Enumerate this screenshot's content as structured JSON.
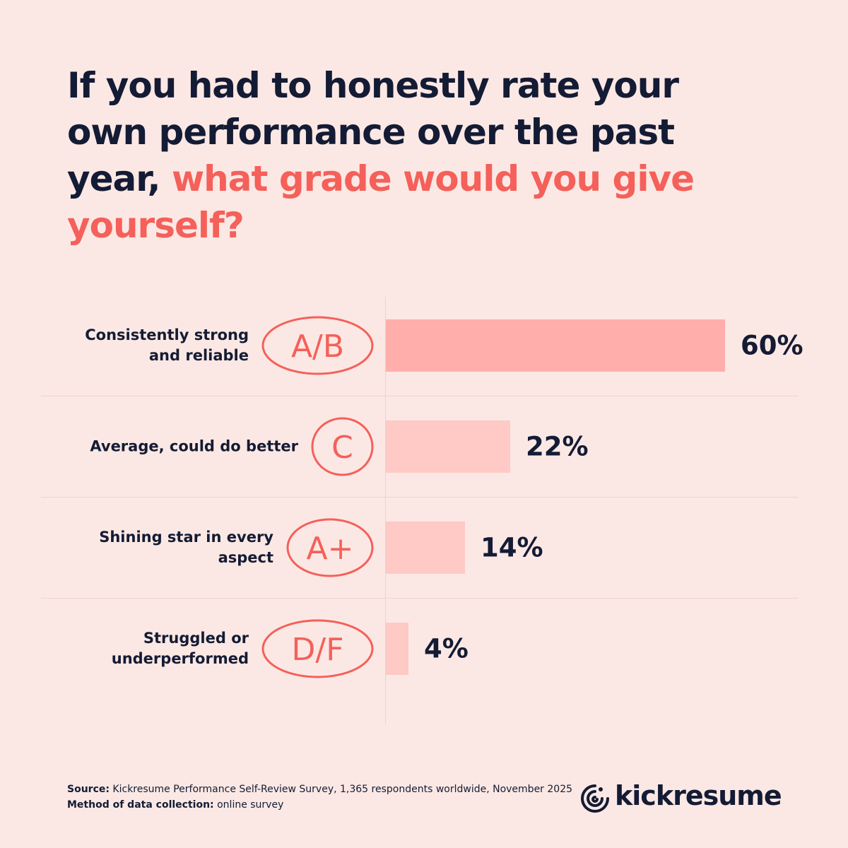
{
  "chart_data": {
    "type": "bar",
    "title": "If you had to honestly rate your own performance over the past year,",
    "title_highlight": "what grade would you give yourself?",
    "categories": [
      "Consistently strong and reliable",
      "Average, could do better",
      "Shining star in every aspect",
      "Struggled or underperformed"
    ],
    "grades": [
      "A/B",
      "C",
      "A+",
      "D/F"
    ],
    "values": [
      60,
      22,
      14,
      4
    ],
    "value_labels": [
      "60%",
      "22%",
      "14%",
      "4%"
    ],
    "colors": [
      "#ffaeac",
      "#ffc9c5",
      "#ffc9c5",
      "#ffc9c5"
    ],
    "grade_color": "#f5605a"
  },
  "footer": {
    "source_label": "Source:",
    "source": "Kickresume Performance Self-Review Survey, 1,365 respondents worldwide, November 2025",
    "method_label": "Method of data collection:",
    "method": "online survey",
    "brand": "kickresume"
  }
}
